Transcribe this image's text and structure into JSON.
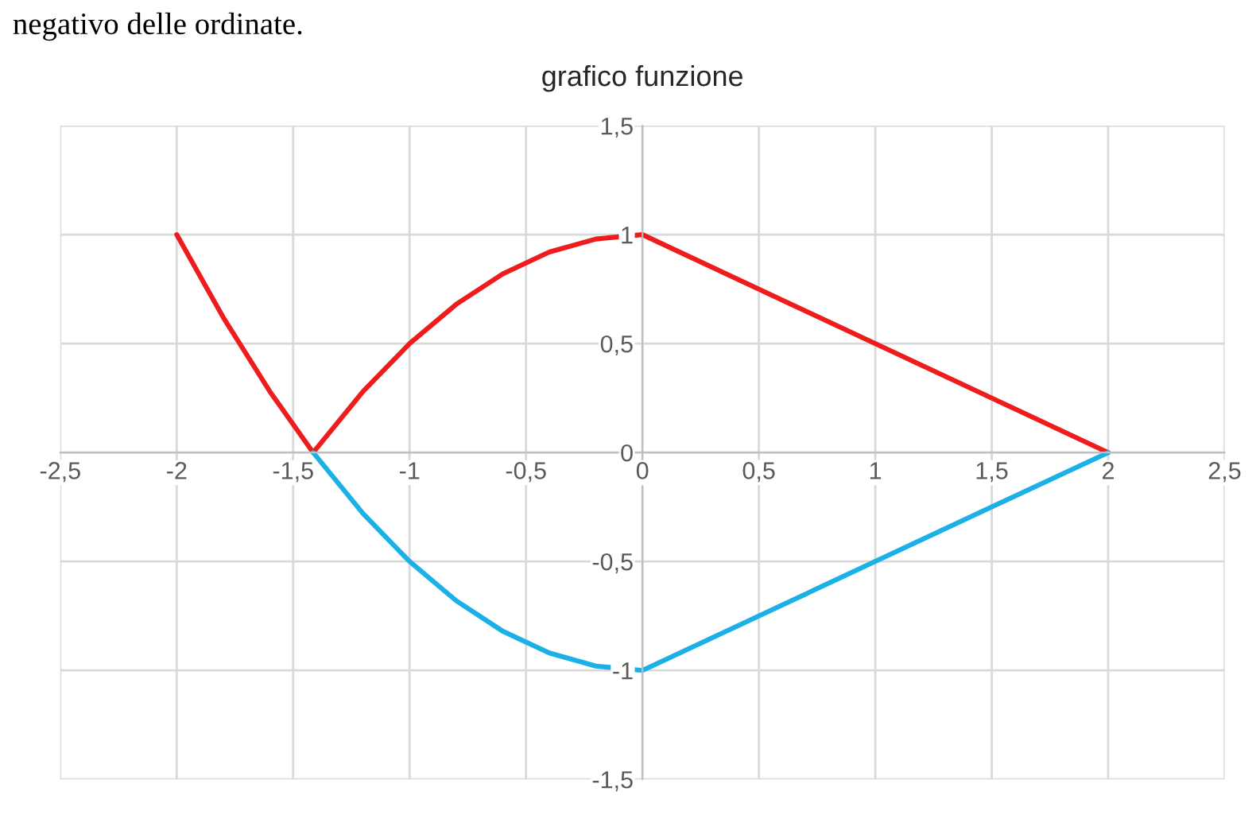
{
  "chart_data": {
    "type": "line",
    "title": "grafico funzione",
    "annotations": [
      "negativo delle ordinate."
    ],
    "series": [
      {
        "color": "#ee1c1c",
        "x": [
          -2,
          -1.8,
          -1.6,
          -1.414,
          -1.2,
          -1,
          -0.8,
          -0.6,
          -0.4,
          -0.2,
          0,
          2
        ],
        "values": [
          1,
          0.62,
          0.28,
          0,
          0.28,
          0.5,
          0.68,
          0.82,
          0.92,
          0.98,
          1,
          0
        ]
      },
      {
        "color": "#1bb0e6",
        "x": [
          -1.414,
          -1.2,
          -1,
          -0.8,
          -0.6,
          -0.4,
          -0.2,
          0,
          2
        ],
        "values": [
          0,
          -0.28,
          -0.5,
          -0.68,
          -0.82,
          -0.92,
          -0.98,
          -1,
          0
        ]
      }
    ],
    "xlim": [
      -2.5,
      2.5
    ],
    "ylim": [
      -1.5,
      1.5
    ],
    "xticks": [
      {
        "value": -2.5,
        "label": "-2,5"
      },
      -2,
      {
        "value": -1.5,
        "label": "-1,5"
      },
      -1,
      {
        "value": -0.5,
        "label": "-0,5"
      },
      0,
      {
        "value": 0.5,
        "label": "0,5"
      },
      1,
      {
        "value": 1.5,
        "label": "1,5"
      },
      2,
      {
        "value": 2.5,
        "label": "2,5"
      }
    ],
    "yticks": [
      {
        "value": -1.5,
        "label": "-1,5"
      },
      -1,
      {
        "value": -0.5,
        "label": "-0,5"
      },
      0,
      {
        "value": 0.5,
        "label": "0,5"
      },
      1,
      {
        "value": 1.5,
        "label": "1,5"
      }
    ],
    "grid": true,
    "marker": "none",
    "line_style": "solid"
  }
}
